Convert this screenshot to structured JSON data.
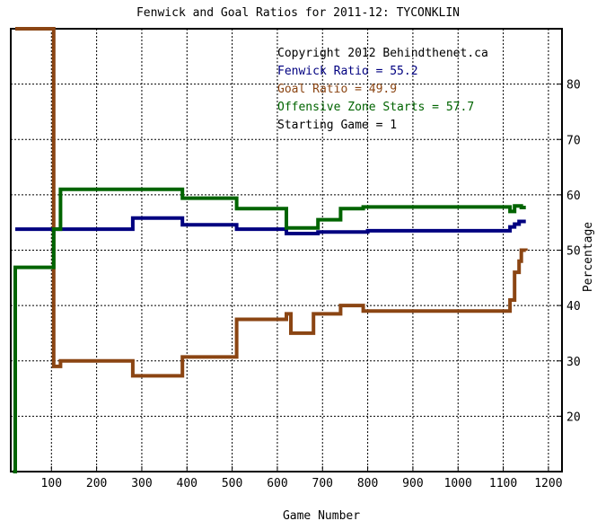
{
  "chart_data": {
    "type": "line",
    "title": "Fenwick and Goal Ratios for 2011-12: TYCONKLIN",
    "xlabel": "Game Number",
    "ylabel": "Percentage",
    "xlim": [
      10,
      1230
    ],
    "ylim": [
      10,
      90
    ],
    "x_ticks": [
      100,
      200,
      300,
      400,
      500,
      600,
      700,
      800,
      900,
      1000,
      1100,
      1200
    ],
    "y_ticks": [
      20,
      30,
      40,
      50,
      60,
      70,
      80
    ],
    "grid": true,
    "annotations": [
      {
        "text": "Copyright 2012 Behindthenet.ca",
        "color": "#000000"
      },
      {
        "text": "Fenwick Ratio = 55.2",
        "color": "#000080"
      },
      {
        "text": "Goal Ratio = 49.9",
        "color": "#8b4513"
      },
      {
        "text": "Offensive Zone Starts = 57.7",
        "color": "#006400"
      },
      {
        "text": "Starting Game = 1",
        "color": "#000000"
      }
    ],
    "series": [
      {
        "color": "#000080",
        "x": [
          20,
          60,
          105,
          120,
          140,
          280,
          390,
          510,
          620,
          690,
          800,
          1100,
          1115,
          1125,
          1135,
          1150
        ],
        "values": [
          53.8,
          53.8,
          53.8,
          53.8,
          53.8,
          55.8,
          54.6,
          53.8,
          53.0,
          53.3,
          53.5,
          53.5,
          54.2,
          54.7,
          55.2,
          55.2
        ]
      },
      {
        "color": "#8b4513",
        "x": [
          20,
          100,
          105,
          120,
          280,
          390,
          510,
          610,
          620,
          630,
          680,
          740,
          790,
          1100,
          1115,
          1125,
          1135,
          1140,
          1150
        ],
        "values": [
          90,
          90,
          29.0,
          30.0,
          27.3,
          30.7,
          37.5,
          37.5,
          38.5,
          35.0,
          38.5,
          40.0,
          39.0,
          39.0,
          41.0,
          46.0,
          48.0,
          50.0,
          49.9
        ]
      },
      {
        "color": "#006400",
        "x": [
          15,
          20,
          100,
          105,
          120,
          140,
          390,
          510,
          620,
          640,
          690,
          740,
          790,
          1100,
          1115,
          1125,
          1140,
          1150
        ],
        "values": [
          10,
          46.9,
          46.9,
          53.8,
          61.0,
          61.0,
          59.4,
          57.5,
          54.0,
          54.0,
          55.5,
          57.5,
          57.8,
          57.8,
          57.0,
          58.0,
          57.7,
          57.7
        ]
      }
    ]
  }
}
